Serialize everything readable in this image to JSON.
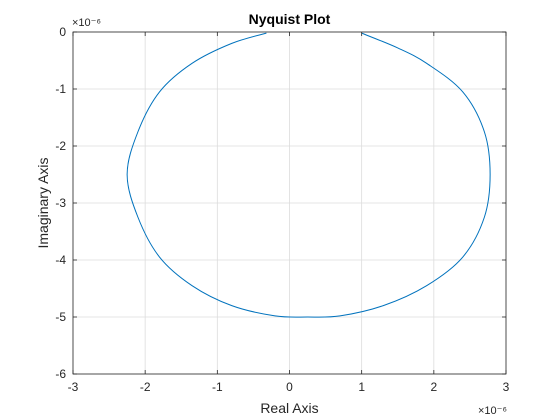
{
  "chart_data": {
    "type": "line",
    "title": "Nyquist Plot",
    "xlabel": "Real Axis",
    "ylabel": "Imaginary Axis",
    "x_exponent": "×10⁻⁶",
    "y_exponent": "×10⁻⁶",
    "xlim": [
      -3,
      3
    ],
    "ylim": [
      -6,
      0
    ],
    "xticks": [
      -3,
      -2,
      -1,
      0,
      1,
      2,
      3
    ],
    "yticks": [
      -6,
      -5,
      -4,
      -3,
      -2,
      -1,
      0
    ],
    "xtick_labels": [
      "-3",
      "-2",
      "-1",
      "0",
      "1",
      "2",
      "3"
    ],
    "ytick_labels": [
      "-6",
      "-5",
      "-4",
      "-3",
      "-2",
      "-1",
      "0"
    ],
    "grid": true,
    "series": [
      {
        "color": "#0072BD",
        "x": [
          -0.32,
          -0.8,
          -1.35,
          -1.8,
          -2.1,
          -2.25,
          -2.1,
          -1.8,
          -1.35,
          -0.8,
          -0.2,
          0.25,
          0.7,
          1.3,
          1.9,
          2.4,
          2.7,
          2.78,
          2.7,
          2.4,
          1.9,
          1.5,
          1.0
        ],
        "y": [
          -0.02,
          -0.2,
          -0.55,
          -1.05,
          -1.75,
          -2.5,
          -3.25,
          -3.95,
          -4.45,
          -4.8,
          -4.98,
          -5.0,
          -4.98,
          -4.8,
          -4.45,
          -3.95,
          -3.25,
          -2.5,
          -1.75,
          -1.05,
          -0.55,
          -0.28,
          -0.02
        ]
      }
    ]
  }
}
